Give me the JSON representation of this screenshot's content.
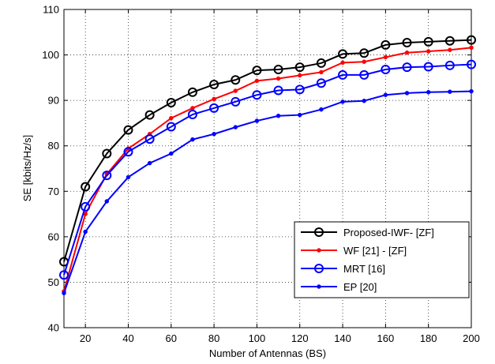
{
  "chart_data": {
    "type": "line",
    "title": "",
    "xlabel": "Number of Antennas (BS)",
    "ylabel": "SE [kbits/Hz/s]",
    "xlim": [
      10,
      200
    ],
    "ylim": [
      40,
      110
    ],
    "xticks": [
      20,
      40,
      60,
      80,
      100,
      120,
      140,
      160,
      180,
      200
    ],
    "yticks": [
      40,
      50,
      60,
      70,
      80,
      90,
      100,
      110
    ],
    "grid": true,
    "legend_position": "lower-right",
    "x": [
      10,
      20,
      30,
      40,
      50,
      60,
      70,
      80,
      90,
      100,
      110,
      120,
      130,
      140,
      150,
      160,
      170,
      180,
      190,
      200
    ],
    "series": [
      {
        "name": "Proposed-IWF- [ZF]",
        "color": "#000000",
        "marker": "circle",
        "values": [
          54.5,
          71.0,
          78.3,
          83.5,
          86.8,
          89.5,
          91.8,
          93.5,
          94.5,
          96.6,
          96.8,
          97.3,
          98.2,
          100.2,
          100.4,
          102.2,
          102.7,
          102.9,
          103.1,
          103.3
        ]
      },
      {
        "name": "WF [21] - [ZF]",
        "color": "#ff0000",
        "marker": "dot",
        "values": [
          48.0,
          65.0,
          73.8,
          79.4,
          82.6,
          86.1,
          88.3,
          90.3,
          92.1,
          94.3,
          94.8,
          95.5,
          96.2,
          98.3,
          98.5,
          99.5,
          100.5,
          100.8,
          101.1,
          101.6
        ]
      },
      {
        "name": "MRT [16]",
        "color": "#0000ff",
        "marker": "circle",
        "values": [
          51.6,
          66.6,
          73.5,
          78.7,
          81.5,
          84.2,
          86.9,
          88.3,
          89.7,
          91.2,
          92.2,
          92.4,
          93.8,
          95.6,
          95.6,
          96.8,
          97.3,
          97.4,
          97.7,
          97.9
        ]
      },
      {
        "name": "EP [20]",
        "color": "#0000ff",
        "marker": "dot",
        "values": [
          47.6,
          61.1,
          67.8,
          73.1,
          76.2,
          78.3,
          81.4,
          82.6,
          84.1,
          85.5,
          86.6,
          86.8,
          88.0,
          89.7,
          89.9,
          91.2,
          91.6,
          91.8,
          91.9,
          92.0
        ]
      }
    ]
  }
}
